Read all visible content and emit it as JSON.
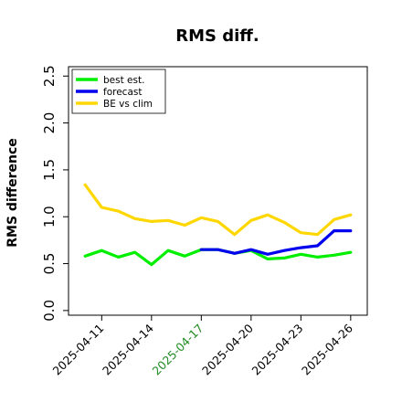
{
  "chart_data": {
    "type": "line",
    "title": "RMS diff.",
    "xlabel": "",
    "ylabel": "RMS difference",
    "ylim": [
      -0.05,
      2.6
    ],
    "yticks": [
      "0.0",
      "0.5",
      "1.0",
      "1.5",
      "2.0",
      "2.5"
    ],
    "ytick_values": [
      0.0,
      0.5,
      1.0,
      1.5,
      2.0,
      2.5
    ],
    "x": [
      "2025-04-10",
      "2025-04-11",
      "2025-04-12",
      "2025-04-13",
      "2025-04-14",
      "2025-04-15",
      "2025-04-16",
      "2025-04-17",
      "2025-04-18",
      "2025-04-19",
      "2025-04-20",
      "2025-04-21",
      "2025-04-22",
      "2025-04-23",
      "2025-04-24",
      "2025-04-25",
      "2025-04-26"
    ],
    "xlim": [
      "2025-04-09",
      "2025-04-27"
    ],
    "xticks": [
      {
        "label": "2025-04-11",
        "date": "2025-04-11",
        "color": "#000000"
      },
      {
        "label": "2025-04-14",
        "date": "2025-04-14",
        "color": "#000000"
      },
      {
        "label": "2025-04-17",
        "date": "2025-04-17",
        "color": "#228b22"
      },
      {
        "label": "2025-04-20",
        "date": "2025-04-20",
        "color": "#000000"
      },
      {
        "label": "2025-04-23",
        "date": "2025-04-23",
        "color": "#000000"
      },
      {
        "label": "2025-04-26",
        "date": "2025-04-26",
        "color": "#000000"
      }
    ],
    "legend_position": "top-left",
    "grid": false,
    "series": [
      {
        "name": "best est.",
        "color": "#00ee00",
        "x": [
          "2025-04-10",
          "2025-04-11",
          "2025-04-12",
          "2025-04-13",
          "2025-04-14",
          "2025-04-15",
          "2025-04-16",
          "2025-04-17",
          "2025-04-18",
          "2025-04-19",
          "2025-04-20",
          "2025-04-21",
          "2025-04-22",
          "2025-04-23",
          "2025-04-24",
          "2025-04-25",
          "2025-04-26"
        ],
        "values": [
          0.58,
          0.64,
          0.57,
          0.62,
          0.49,
          0.64,
          0.58,
          0.65,
          0.65,
          0.61,
          0.64,
          0.55,
          0.56,
          0.6,
          0.57,
          0.59,
          0.62
        ]
      },
      {
        "name": "forecast",
        "color": "#0000ee",
        "x": [
          "2025-04-17",
          "2025-04-18",
          "2025-04-19",
          "2025-04-20",
          "2025-04-21",
          "2025-04-22",
          "2025-04-23",
          "2025-04-24",
          "2025-04-25",
          "2025-04-26"
        ],
        "values": [
          0.65,
          0.65,
          0.61,
          0.65,
          0.6,
          0.64,
          0.67,
          0.69,
          0.85,
          0.85
        ]
      },
      {
        "name": "BE vs clim",
        "color": "#ffd700",
        "x": [
          "2025-04-10",
          "2025-04-11",
          "2025-04-12",
          "2025-04-13",
          "2025-04-14",
          "2025-04-15",
          "2025-04-16",
          "2025-04-17",
          "2025-04-18",
          "2025-04-19",
          "2025-04-20",
          "2025-04-21",
          "2025-04-22",
          "2025-04-23",
          "2025-04-24",
          "2025-04-25",
          "2025-04-26"
        ],
        "values": [
          1.34,
          1.1,
          1.06,
          0.98,
          0.95,
          0.96,
          0.91,
          0.99,
          0.95,
          0.81,
          0.96,
          1.02,
          0.94,
          0.83,
          0.81,
          0.97,
          1.02
        ]
      }
    ]
  }
}
